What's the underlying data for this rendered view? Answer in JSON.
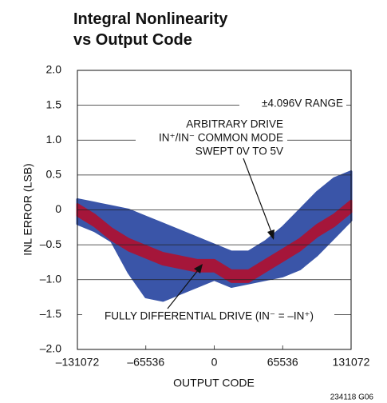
{
  "chart_data": {
    "type": "band",
    "title_lines": [
      "Integral Nonlinearity",
      "vs Output Code"
    ],
    "x_label": "OUTPUT CODE",
    "y_label": "INL ERROR (LSB)",
    "footnote": "234118 G06",
    "annotations": [
      "±4.096V RANGE",
      "ARBITRARY DRIVE",
      "IN⁺/IN⁻ COMMON MODE",
      "SWEPT 0V TO 5V",
      "FULLY DIFFERENTIAL DRIVE (IN⁻ = –IN⁺)"
    ],
    "x": [
      -131072,
      -114688,
      -98304,
      -81920,
      -65536,
      -49152,
      -32768,
      -16384,
      0,
      16384,
      32768,
      49152,
      65536,
      81920,
      98304,
      114688,
      131072
    ],
    "series": [
      {
        "color": "#3a55a8",
        "upper": [
          0.15,
          0.1,
          0.05,
          0,
          -0.1,
          -0.2,
          -0.3,
          -0.4,
          -0.5,
          -0.6,
          -0.6,
          -0.45,
          -0.25,
          0,
          0.25,
          0.45,
          0.55
        ],
        "lower": [
          -0.2,
          -0.3,
          -0.45,
          -0.9,
          -1.25,
          -1.3,
          -1.2,
          -1.1,
          -1.0,
          -1.1,
          -1.05,
          -1.0,
          -0.95,
          -0.85,
          -0.65,
          -0.4,
          -0.15
        ]
      },
      {
        "color": "#a5163a",
        "upper": [
          0.08,
          -0.07,
          -0.27,
          -0.42,
          -0.52,
          -0.62,
          -0.67,
          -0.72,
          -0.72,
          -0.87,
          -0.87,
          -0.72,
          -0.57,
          -0.42,
          -0.22,
          -0.07,
          0.13
        ],
        "lower": [
          -0.08,
          -0.23,
          -0.43,
          -0.58,
          -0.68,
          -0.78,
          -0.83,
          -0.88,
          -0.88,
          -1.03,
          -1.03,
          -0.88,
          -0.73,
          -0.58,
          -0.38,
          -0.23,
          -0.03
        ]
      }
    ],
    "xlim": [
      -131072,
      131072
    ],
    "ylim": [
      -2,
      2
    ],
    "xticks": [
      {
        "value": -131072,
        "label": "–131072"
      },
      {
        "value": -65536,
        "label": "–65536"
      },
      0,
      65536,
      131072
    ],
    "yticks": [
      {
        "value": -2,
        "label": "–2.0"
      },
      {
        "value": -1.5,
        "label": "–1.5"
      },
      {
        "value": -1,
        "label": "–1.0"
      },
      {
        "value": -0.5,
        "label": "–0.5"
      },
      0,
      {
        "value": 0.5,
        "label": "0.5"
      },
      {
        "value": 1,
        "label": "1.0"
      },
      {
        "value": 1.5,
        "label": "1.5"
      },
      {
        "value": 2,
        "label": "2.0"
      }
    ],
    "grid": true
  }
}
